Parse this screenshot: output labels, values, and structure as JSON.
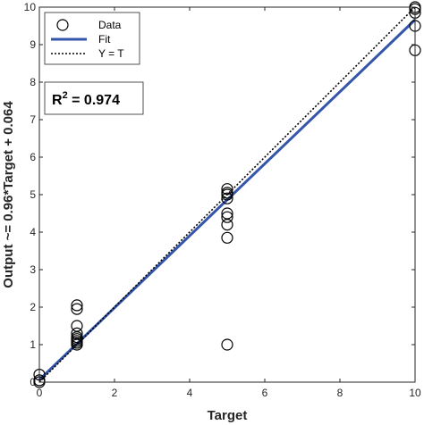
{
  "chart_data": {
    "type": "scatter",
    "xlabel": "Target",
    "ylabel": "Output ~= 0.96*Target + 0.064",
    "xlim": [
      0,
      10
    ],
    "ylim": [
      0,
      10
    ],
    "xticks": [
      0,
      2,
      4,
      6,
      8,
      10
    ],
    "yticks": [
      0,
      1,
      2,
      3,
      4,
      5,
      6,
      7,
      8,
      9,
      10
    ],
    "grid": false,
    "legend_position": "top-left",
    "legend": [
      {
        "label": "Data",
        "marker": "circle"
      },
      {
        "label": "Fit",
        "style": "solid",
        "color": "#3355aa"
      },
      {
        "label": "Y = T",
        "style": "dotted",
        "color": "#000000"
      }
    ],
    "annotation": {
      "prefix": "R",
      "superscript": "2",
      "value": " = 0.974"
    },
    "fit": {
      "slope": 0.96,
      "intercept": 0.064,
      "color": "#3355aa"
    },
    "identity_color": "#000000",
    "series": [
      {
        "name": "Data",
        "x": [
          0,
          0,
          0,
          1,
          1,
          1,
          1,
          1,
          1,
          1,
          1,
          1,
          5,
          5,
          5,
          5,
          5,
          5,
          5,
          5,
          5,
          10,
          10,
          10,
          10,
          10
        ],
        "y": [
          0,
          0.05,
          0.2,
          1.0,
          1.1,
          1.2,
          1.3,
          1.5,
          1.95,
          2.05,
          1.05,
          1.15,
          1.0,
          3.85,
          4.2,
          4.4,
          4.5,
          4.9,
          5.0,
          5.05,
          5.15,
          8.85,
          9.5,
          9.85,
          9.95,
          10.0
        ]
      }
    ]
  }
}
